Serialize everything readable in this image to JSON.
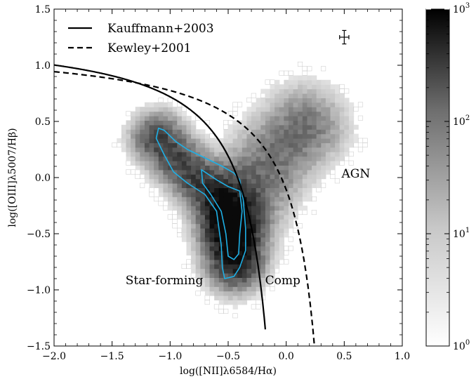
{
  "chart_data": {
    "type": "heatmap",
    "xlabel": "log([NII]λ6584/Hα)",
    "ylabel": "log([OIII]λ5007/Hβ)",
    "xlim": [
      -2.0,
      1.0
    ],
    "ylim": [
      -1.5,
      1.5
    ],
    "x_ticks": [
      -2.0,
      -1.5,
      -1.0,
      -0.5,
      0.0,
      0.5,
      1.0
    ],
    "x_tick_labels": [
      "−2.0",
      "−1.5",
      "−1.0",
      "−0.5",
      "0.0",
      "0.5",
      "1.0"
    ],
    "y_ticks": [
      -1.5,
      -1.0,
      -0.5,
      0.0,
      0.5,
      1.0,
      1.5
    ],
    "y_tick_labels": [
      "−1.5",
      "−1.0",
      "−0.5",
      "0.0",
      "0.5",
      "1.0",
      "1.5"
    ],
    "grid": false,
    "legend_position": "top-left",
    "legend": [
      {
        "name": "Kauffmann+2003",
        "style": "solid"
      },
      {
        "name": "Kewley+2001",
        "style": "dashed"
      }
    ],
    "curves": [
      {
        "name": "Kauffmann+2003",
        "formula": "0.61/(x-0.05)+1.3",
        "style": "solid",
        "x_range": [
          -2.0,
          -0.18
        ]
      },
      {
        "name": "Kewley+2001",
        "formula": "0.61/(x-0.47)+1.19",
        "style": "dashed",
        "x_range": [
          -2.0,
          0.25
        ]
      }
    ],
    "annotations": [
      {
        "text": "Star-forming",
        "x": -1.05,
        "y": -0.95
      },
      {
        "text": "Comp",
        "x": -0.03,
        "y": -0.95
      },
      {
        "text": "AGN",
        "x": 0.6,
        "y": 0.0
      }
    ],
    "error_bar": {
      "x": 0.5,
      "y": 1.25,
      "xerr": 0.04,
      "yerr": 0.06
    },
    "density": {
      "scale": "log",
      "colormap": "greys",
      "components": [
        {
          "name": "star-forming branch",
          "path": [
            [
              -1.1,
              0.35
            ],
            [
              -0.95,
              0.18
            ],
            [
              -0.8,
              0.02
            ],
            [
              -0.65,
              -0.12
            ],
            [
              -0.52,
              -0.3
            ],
            [
              -0.45,
              -0.52
            ],
            [
              -0.42,
              -0.75
            ]
          ],
          "width": 0.13,
          "weight": 1.0
        },
        {
          "name": "AGN wing",
          "path": [
            [
              -0.4,
              -0.3
            ],
            [
              -0.25,
              -0.05
            ],
            [
              -0.1,
              0.18
            ],
            [
              0.05,
              0.35
            ],
            [
              0.15,
              0.45
            ]
          ],
          "width": 0.2,
          "weight": 0.55
        },
        {
          "name": "core",
          "center": [
            -0.47,
            -0.45
          ],
          "sx": 0.14,
          "sy": 0.25,
          "weight": 1.7
        }
      ]
    },
    "contours": [
      {
        "level": "outer",
        "color": "#1eb0e6",
        "path": [
          [
            -1.1,
            0.44
          ],
          [
            -1.05,
            0.42
          ],
          [
            -0.95,
            0.32
          ],
          [
            -0.85,
            0.25
          ],
          [
            -0.75,
            0.2
          ],
          [
            -0.65,
            0.15
          ],
          [
            -0.55,
            0.1
          ],
          [
            -0.45,
            0.04
          ],
          [
            -0.4,
            -0.02
          ],
          [
            -0.37,
            -0.2
          ],
          [
            -0.35,
            -0.45
          ],
          [
            -0.35,
            -0.65
          ],
          [
            -0.4,
            -0.8
          ],
          [
            -0.45,
            -0.88
          ],
          [
            -0.53,
            -0.9
          ],
          [
            -0.55,
            -0.8
          ],
          [
            -0.56,
            -0.6
          ],
          [
            -0.6,
            -0.3
          ],
          [
            -0.7,
            -0.15
          ],
          [
            -0.85,
            -0.05
          ],
          [
            -0.97,
            0.05
          ],
          [
            -1.05,
            0.2
          ],
          [
            -1.12,
            0.35
          ],
          [
            -1.1,
            0.44
          ]
        ]
      },
      {
        "level": "inner",
        "color": "#1eb0e6",
        "path": [
          [
            -0.73,
            0.07
          ],
          [
            -0.6,
            -0.02
          ],
          [
            -0.5,
            -0.08
          ],
          [
            -0.4,
            -0.12
          ],
          [
            -0.38,
            -0.3
          ],
          [
            -0.4,
            -0.5
          ],
          [
            -0.41,
            -0.68
          ],
          [
            -0.45,
            -0.73
          ],
          [
            -0.5,
            -0.7
          ],
          [
            -0.52,
            -0.5
          ],
          [
            -0.56,
            -0.3
          ],
          [
            -0.65,
            -0.15
          ],
          [
            -0.72,
            -0.05
          ],
          [
            -0.73,
            0.07
          ]
        ]
      }
    ]
  },
  "colorbar": {
    "scale": "log",
    "range": [
      1,
      1000
    ],
    "tick_labels": [
      {
        "base": "10",
        "exp": "0"
      },
      {
        "base": "10",
        "exp": "1"
      },
      {
        "base": "10",
        "exp": "2"
      },
      {
        "base": "10",
        "exp": "3"
      }
    ]
  }
}
